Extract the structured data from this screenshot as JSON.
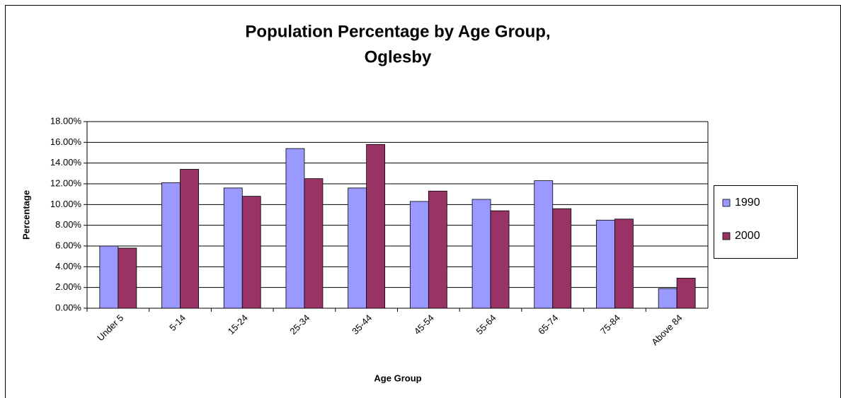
{
  "chart_data": {
    "type": "bar",
    "title": [
      "Population Percentage by Age Group,",
      "Oglesby"
    ],
    "x_label": "Age Group",
    "y_label": "Percentage",
    "categories": [
      "Under 5",
      "5-14",
      "15-24",
      "25-34",
      "35-44",
      "45-54",
      "55-64",
      "65-74",
      "75-84",
      "Above 84"
    ],
    "series": [
      {
        "name": "1990",
        "color": "#9999ff",
        "values": [
          6.0,
          12.1,
          11.6,
          15.4,
          11.6,
          10.3,
          10.5,
          12.3,
          8.5,
          1.9
        ]
      },
      {
        "name": "2000",
        "color": "#993366",
        "values": [
          5.8,
          13.4,
          10.8,
          12.5,
          15.8,
          11.3,
          9.4,
          9.6,
          8.6,
          2.9
        ]
      }
    ],
    "ylim": [
      0,
      18
    ],
    "yticks": [
      {
        "value": 0,
        "label": "0.00%"
      },
      {
        "value": 2,
        "label": "2.00%"
      },
      {
        "value": 4,
        "label": "4.00%"
      },
      {
        "value": 6,
        "label": "6.00%"
      },
      {
        "value": 8,
        "label": "8.00%"
      },
      {
        "value": 10,
        "label": "10.00%"
      },
      {
        "value": 12,
        "label": "12.00%"
      },
      {
        "value": 14,
        "label": "14.00%"
      },
      {
        "value": 16,
        "label": "16.00%"
      },
      {
        "value": 18,
        "label": "18.00%"
      }
    ],
    "grid": true,
    "legend": "right"
  }
}
